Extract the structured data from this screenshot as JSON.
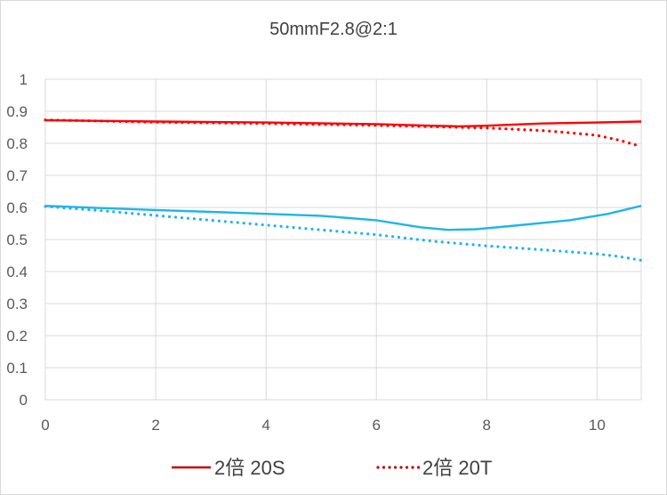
{
  "chart_data": {
    "type": "line",
    "title": "50mmF2.8@2:1",
    "xlabel": "",
    "ylabel": "",
    "xlim": [
      0,
      10.8
    ],
    "ylim": [
      0,
      1
    ],
    "x_ticks": [
      "0",
      "2",
      "4",
      "6",
      "8",
      "10"
    ],
    "y_ticks": [
      "0",
      "0.1",
      "0.2",
      "0.3",
      "0.4",
      "0.5",
      "0.6",
      "0.7",
      "0.8",
      "0.9",
      "1"
    ],
    "grid": true,
    "legend_position": "bottom",
    "series": [
      {
        "name": "",
        "color": "#ff0000",
        "style": "solid",
        "x": [
          0,
          2,
          4,
          6,
          7,
          7.5,
          8,
          9,
          10,
          10.8
        ],
        "y": [
          0.872,
          0.868,
          0.865,
          0.86,
          0.855,
          0.853,
          0.855,
          0.862,
          0.865,
          0.868
        ]
      },
      {
        "name": "",
        "color": "#ff0000",
        "style": "dotted",
        "x": [
          0,
          2,
          4,
          6,
          7,
          8,
          9,
          9.5,
          10,
          10.4,
          10.8
        ],
        "y": [
          0.873,
          0.866,
          0.862,
          0.856,
          0.852,
          0.848,
          0.84,
          0.833,
          0.825,
          0.81,
          0.79
        ]
      },
      {
        "name": "",
        "color": "#1fb5e8",
        "style": "solid",
        "x": [
          0,
          1,
          2,
          3,
          4,
          5,
          6,
          6.8,
          7.3,
          7.8,
          8.5,
          9.5,
          10.2,
          10.8
        ],
        "y": [
          0.605,
          0.598,
          0.592,
          0.586,
          0.58,
          0.574,
          0.56,
          0.538,
          0.53,
          0.532,
          0.543,
          0.56,
          0.58,
          0.605
        ]
      },
      {
        "name": "",
        "color": "#1fb5e8",
        "style": "dotted",
        "x": [
          0,
          1,
          2,
          3,
          4,
          5,
          6,
          7,
          8,
          9,
          10,
          10.4,
          10.8
        ],
        "y": [
          0.603,
          0.59,
          0.575,
          0.56,
          0.545,
          0.53,
          0.515,
          0.495,
          0.48,
          0.468,
          0.455,
          0.447,
          0.435
        ]
      }
    ],
    "legend": [
      {
        "label": "2倍 20S",
        "color": "#c00000",
        "style": "solid"
      },
      {
        "label": "2倍 20T",
        "color": "#c00000",
        "style": "dotted"
      }
    ]
  }
}
